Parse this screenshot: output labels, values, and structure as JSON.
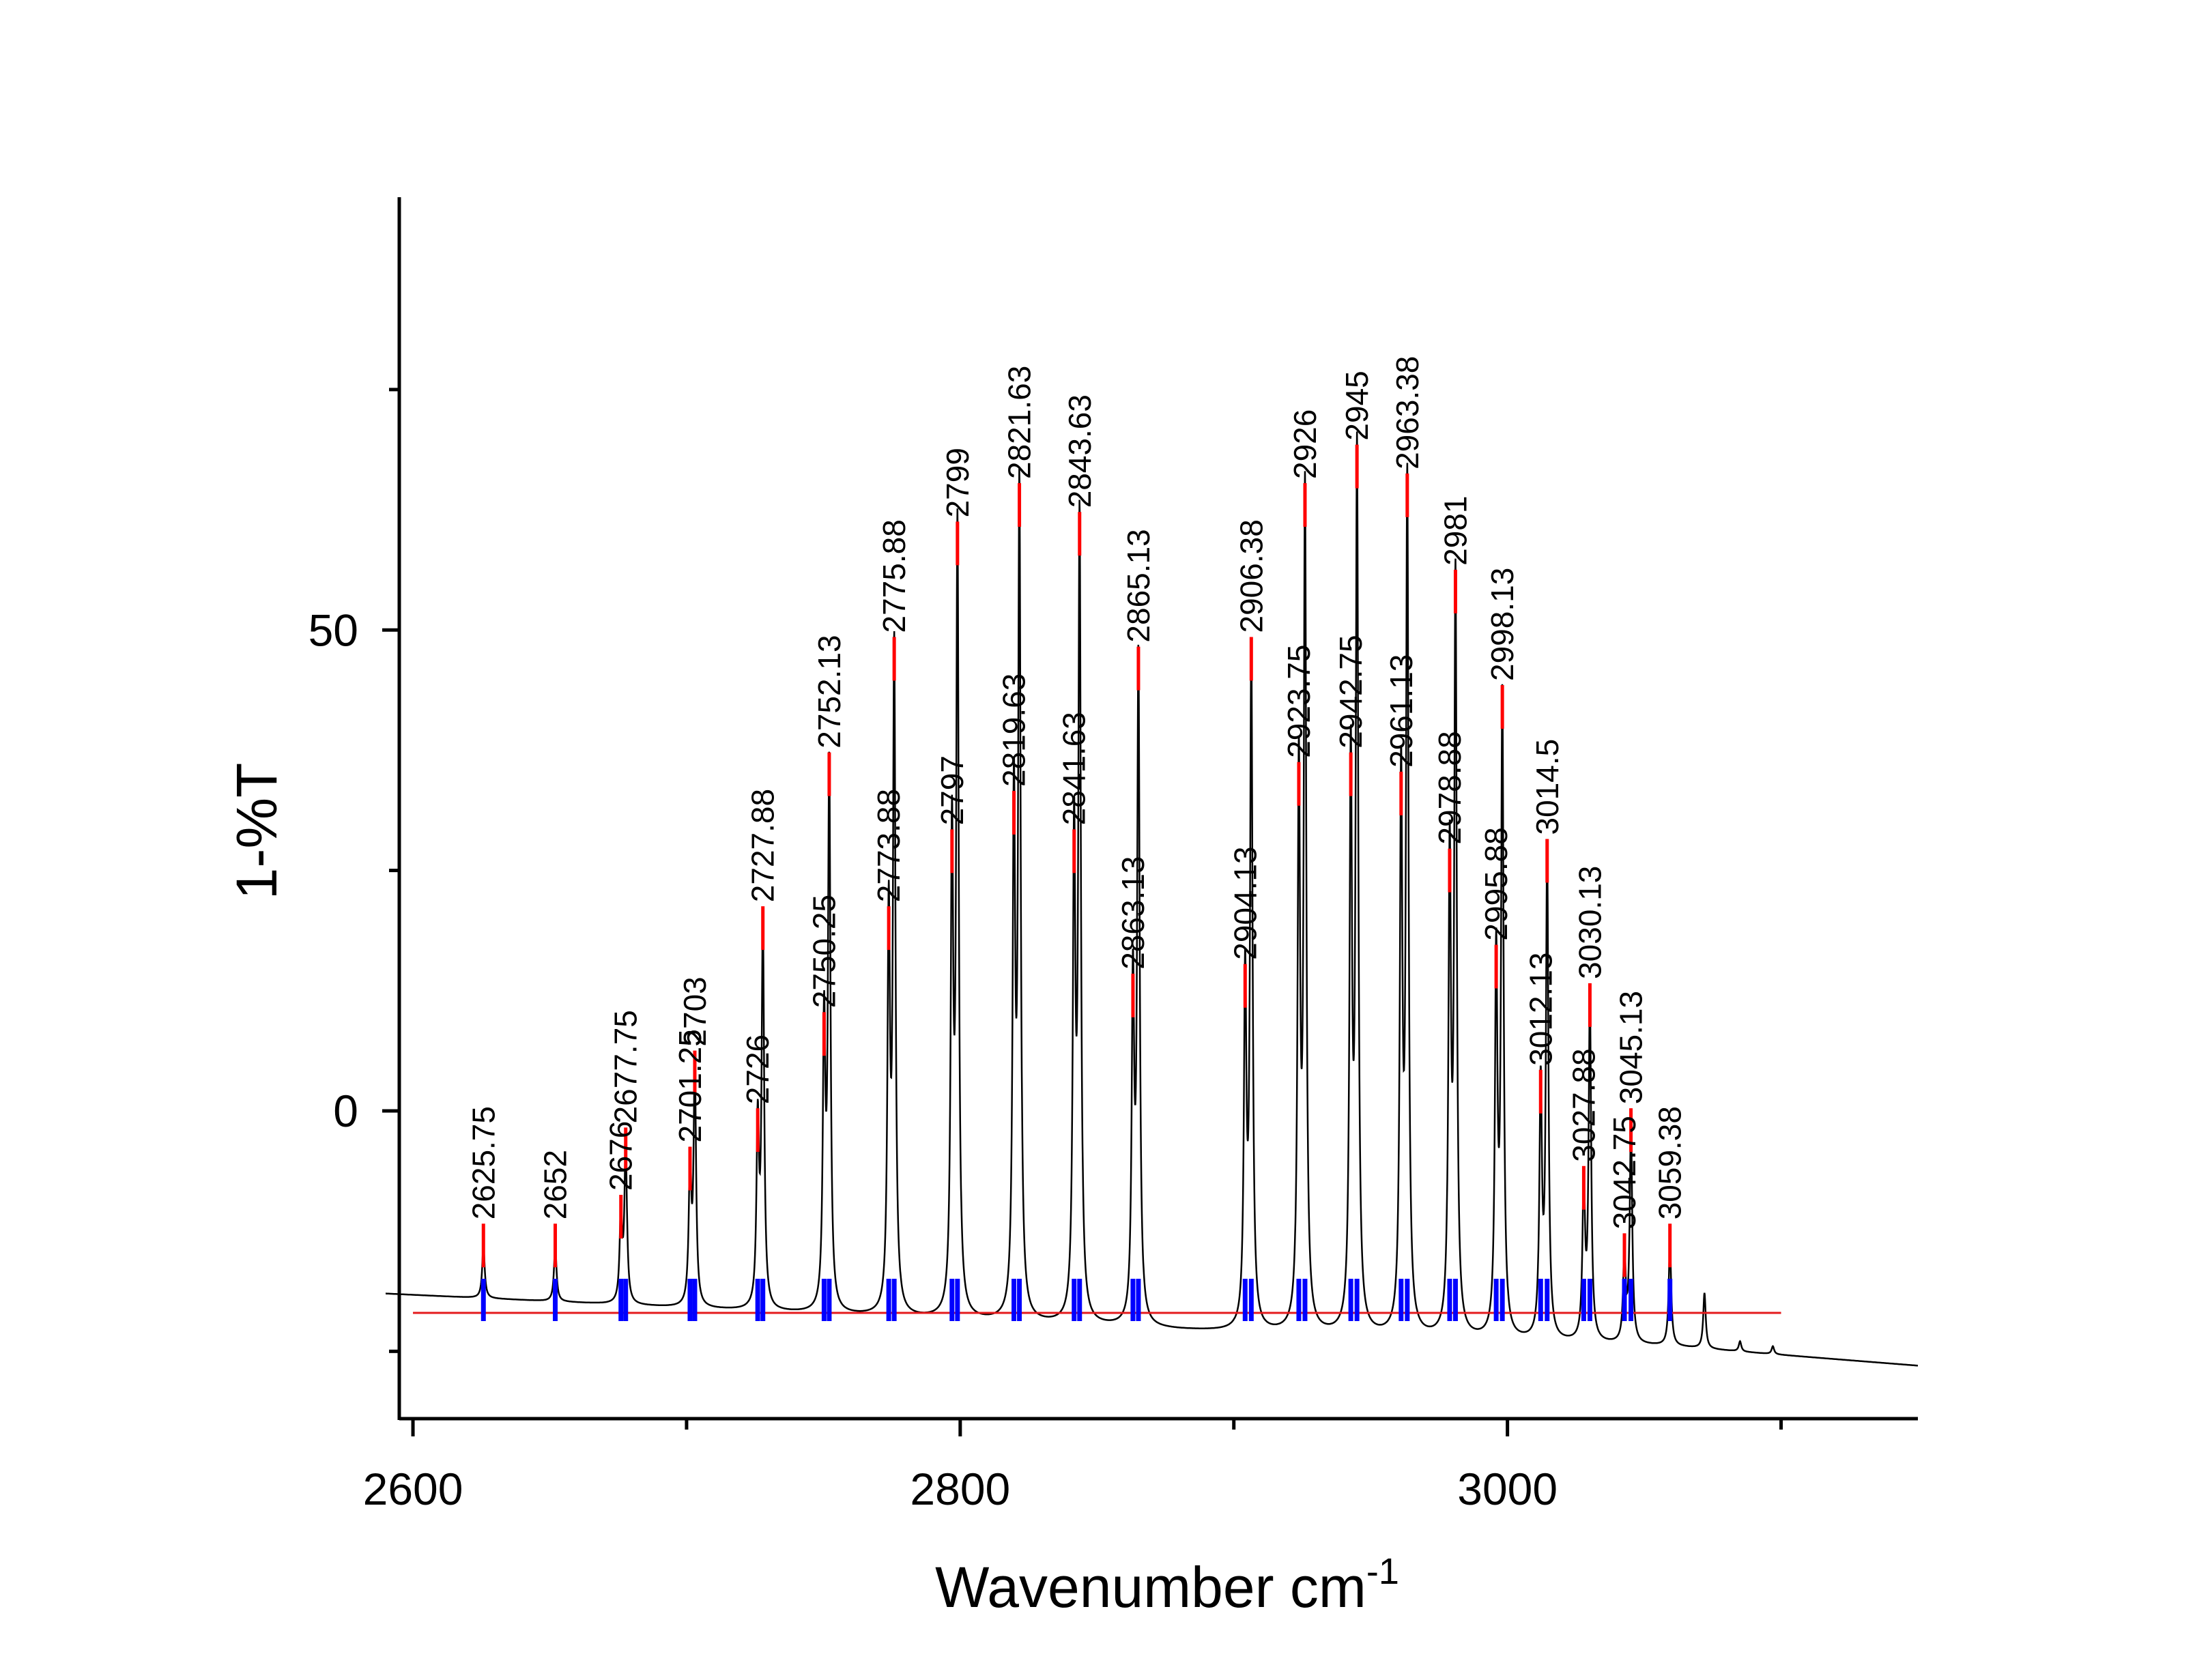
{
  "chart_data": {
    "type": "line",
    "xlabel": "Wavenumber cm",
    "xlabel_superscript": "-1",
    "ylabel": "1-%T",
    "xlim": [
      2595,
      3150
    ],
    "ylim": [
      -32,
      95
    ],
    "x_ticks": [
      2600,
      2800,
      3000
    ],
    "x_tick_labels": [
      "2600",
      "2800",
      "3000"
    ],
    "x_minor_ticks": [
      2700,
      2900,
      3100
    ],
    "y_ticks": [
      0,
      50
    ],
    "y_tick_labels": [
      "0",
      "50"
    ],
    "y_minor_ticks": [
      -25,
      25,
      75
    ],
    "baseline": {
      "y": -21,
      "x_range": [
        2600,
        3100
      ],
      "color": "#e41a1c"
    },
    "colors": {
      "spectrum": "#000000",
      "peak_marker": "#ff0000",
      "fit_marker": "#0000ff",
      "baseline": "#e41a1c"
    },
    "peaks": [
      {
        "x": 2625.75,
        "label": "2625.75",
        "y": -14
      },
      {
        "x": 2652,
        "label": "2652",
        "y": -14
      },
      {
        "x": 2676,
        "label": "2676",
        "y": -11
      },
      {
        "x": 2677.75,
        "label": "2677.75",
        "y": -4
      },
      {
        "x": 2701.25,
        "label": "2701.25",
        "y": -6
      },
      {
        "x": 2703,
        "label": "2703",
        "y": 4
      },
      {
        "x": 2726,
        "label": "2726",
        "y": -2
      },
      {
        "x": 2727.88,
        "label": "2727.88",
        "y": 19
      },
      {
        "x": 2750.25,
        "label": "2750.25",
        "y": 8
      },
      {
        "x": 2752.13,
        "label": "2752.13",
        "y": 35
      },
      {
        "x": 2773.88,
        "label": "2773.88",
        "y": 19
      },
      {
        "x": 2775.88,
        "label": "2775.88",
        "y": 47
      },
      {
        "x": 2797,
        "label": "2797",
        "y": 27
      },
      {
        "x": 2799,
        "label": "2799",
        "y": 59
      },
      {
        "x": 2819.63,
        "label": "2819.63",
        "y": 31
      },
      {
        "x": 2821.63,
        "label": "2821.63",
        "y": 63
      },
      {
        "x": 2841.63,
        "label": "2841.63",
        "y": 27
      },
      {
        "x": 2843.63,
        "label": "2843.63",
        "y": 60
      },
      {
        "x": 2863.13,
        "label": "2863.13",
        "y": 12
      },
      {
        "x": 2865.13,
        "label": "2865.13",
        "y": 46
      },
      {
        "x": 2904.13,
        "label": "2904.13",
        "y": 13
      },
      {
        "x": 2906.38,
        "label": "2906.38",
        "y": 47
      },
      {
        "x": 2923.75,
        "label": "2923.75",
        "y": 34
      },
      {
        "x": 2926,
        "label": "2926",
        "y": 63
      },
      {
        "x": 2942.75,
        "label": "2942.75",
        "y": 35
      },
      {
        "x": 2945,
        "label": "2945",
        "y": 67
      },
      {
        "x": 2961.13,
        "label": "2961.13",
        "y": 33
      },
      {
        "x": 2963.38,
        "label": "2963.38",
        "y": 64
      },
      {
        "x": 2978.88,
        "label": "2978.88",
        "y": 25
      },
      {
        "x": 2981,
        "label": "2981",
        "y": 54
      },
      {
        "x": 2995.88,
        "label": "2995.88",
        "y": 15
      },
      {
        "x": 2998.13,
        "label": "2998.13",
        "y": 42
      },
      {
        "x": 3012.13,
        "label": "3012.13",
        "y": 2
      },
      {
        "x": 3014.5,
        "label": "3014.5",
        "y": 26
      },
      {
        "x": 3027.88,
        "label": "3027.88",
        "y": -8
      },
      {
        "x": 3030.13,
        "label": "3030.13",
        "y": 11
      },
      {
        "x": 3042.75,
        "label": "3042.75",
        "y": -15
      },
      {
        "x": 3045.13,
        "label": "3045.13",
        "y": -2
      },
      {
        "x": 3059.38,
        "label": "3059.38",
        "y": -14
      }
    ],
    "unlabeled_features": [
      {
        "x": 3072,
        "y": -19
      },
      {
        "x": 3085,
        "y": -24
      },
      {
        "x": 3097,
        "y": -24.5
      }
    ],
    "background_curve": [
      [
        2590,
        -19
      ],
      [
        2700,
        -20.5
      ],
      [
        2880,
        -22.8
      ],
      [
        3060,
        -24.5
      ],
      [
        3150,
        -26.5
      ]
    ]
  }
}
